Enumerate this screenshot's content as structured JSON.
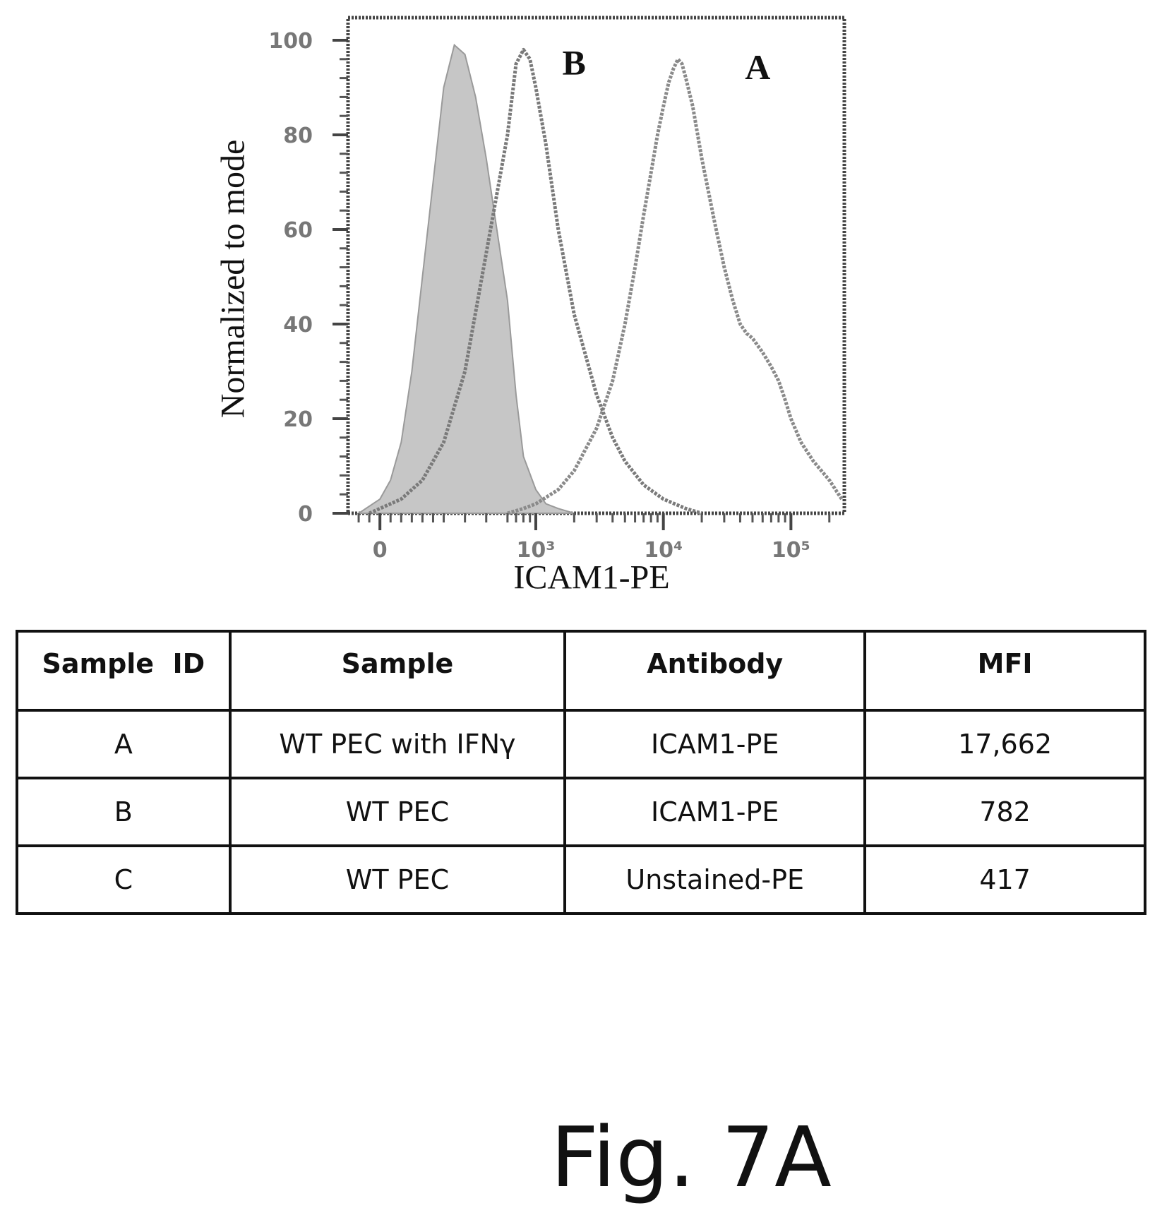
{
  "chart_data": {
    "type": "area",
    "xlabel": "ICAM1-PE",
    "ylabel": "Normalized to mode",
    "x_scale": "biexponential",
    "x_ticks": [
      "0",
      "10³",
      "10⁴",
      "10⁵"
    ],
    "y_ticks": [
      "0",
      "20",
      "40",
      "60",
      "80",
      "100"
    ],
    "ylim": [
      0,
      100
    ],
    "grid": false,
    "series": [
      {
        "name": "A",
        "style": "line",
        "color": "#8a8a8a",
        "x": [
          600,
          800,
          1000,
          1500,
          2000,
          3000,
          4000,
          5000,
          6000,
          7000,
          8000,
          9000,
          10000,
          11000,
          12000,
          13000,
          14000,
          15000,
          17000,
          20000,
          25000,
          30000,
          35000,
          40000,
          45000,
          50000,
          60000,
          70000,
          80000,
          90000,
          100000,
          120000,
          150000,
          200000,
          250000
        ],
        "y": [
          0,
          1,
          2,
          5,
          9,
          18,
          28,
          40,
          52,
          63,
          72,
          80,
          86,
          91,
          94,
          96,
          95,
          92,
          86,
          75,
          62,
          52,
          45,
          40,
          38,
          37,
          34,
          31,
          28,
          24,
          20,
          15,
          11,
          7,
          3
        ]
      },
      {
        "name": "B",
        "style": "line",
        "color": "#7a7a7a",
        "x": [
          -50,
          0,
          100,
          200,
          300,
          400,
          500,
          600,
          700,
          800,
          900,
          1000,
          1200,
          1500,
          2000,
          3000,
          4000,
          5000,
          7000,
          10000,
          15000,
          20000
        ],
        "y": [
          0,
          1,
          3,
          7,
          15,
          30,
          55,
          80,
          95,
          98,
          96,
          90,
          78,
          60,
          42,
          25,
          16,
          11,
          6,
          3,
          1,
          0
        ]
      },
      {
        "name": "",
        "style": "filled",
        "color": "#c6c6c6",
        "x": [
          -100,
          0,
          50,
          100,
          150,
          200,
          250,
          300,
          350,
          400,
          450,
          500,
          550,
          600,
          700,
          800,
          1000,
          1200,
          1500,
          2000
        ],
        "y": [
          0,
          3,
          7,
          15,
          30,
          50,
          70,
          90,
          99,
          97,
          88,
          75,
          60,
          45,
          25,
          12,
          5,
          2,
          1,
          0
        ]
      }
    ],
    "annotations": [
      "B",
      "A"
    ]
  },
  "table": {
    "headers": [
      "Sample  ID",
      "Sample",
      "Antibody",
      "MFI"
    ],
    "rows": [
      [
        "A",
        "WT PEC with IFNγ",
        "ICAM1-PE",
        "17,662"
      ],
      [
        "B",
        "WT PEC",
        "ICAM1-PE",
        "782"
      ],
      [
        "C",
        "WT PEC",
        "Unstained-PE",
        "417"
      ]
    ]
  },
  "caption": "Fig. 7A"
}
